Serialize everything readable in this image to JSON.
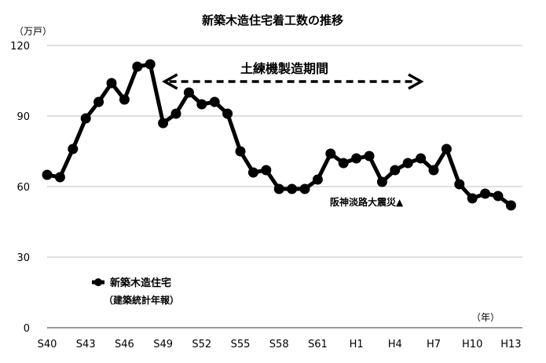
{
  "chart_data": {
    "type": "line",
    "title": "新築木造住宅着工数の推移",
    "y_unit": "（万戸）",
    "x_unit": "（年）",
    "ylim": [
      0,
      120
    ],
    "y_ticks": [
      0,
      30,
      60,
      90,
      120
    ],
    "grid": true,
    "x_tick_labels": [
      "S40",
      "S43",
      "S46",
      "S49",
      "S52",
      "S55",
      "S58",
      "S61",
      "H1",
      "H4",
      "H7",
      "H10",
      "H13"
    ],
    "series": [
      {
        "name": "新築木造住宅",
        "source": "（建築統計年報）",
        "x": [
          "S40",
          "S41",
          "S42",
          "S43",
          "S44",
          "S45",
          "S46",
          "S47",
          "S48",
          "S49",
          "S50",
          "S51",
          "S52",
          "S53",
          "S54",
          "S55",
          "S56",
          "S57",
          "S58",
          "S59",
          "S60",
          "S61",
          "S62",
          "S63",
          "H1",
          "H2",
          "H3",
          "H4",
          "H5",
          "H6",
          "H7",
          "H8",
          "H9",
          "H10",
          "H11",
          "H12",
          "H13"
        ],
        "values": [
          65,
          64,
          76,
          89,
          96,
          104,
          97,
          111,
          112,
          87,
          91,
          100,
          95,
          96,
          91,
          75,
          66,
          67,
          59,
          59,
          59,
          63,
          74,
          70,
          72,
          73,
          62,
          67,
          70,
          72,
          67,
          76,
          61,
          55,
          57,
          56,
          52
        ]
      }
    ],
    "annotations": {
      "period_label": "土練機製造期間",
      "period_range": [
        "S49",
        "H7"
      ],
      "earthquake_label": "阪神淡路大震災▲"
    }
  }
}
